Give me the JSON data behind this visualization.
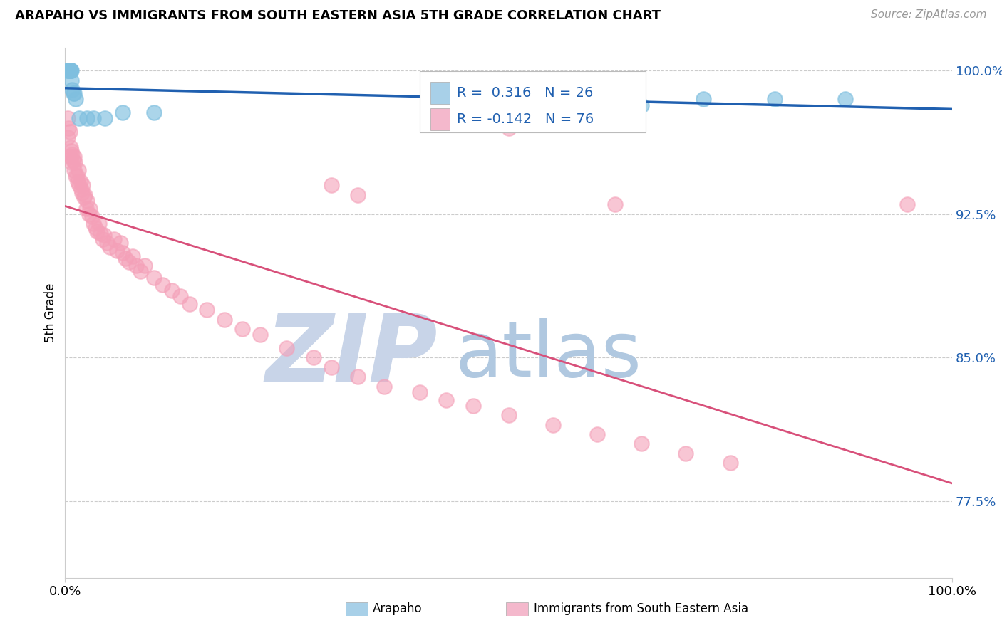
{
  "title": "ARAPAHO VS IMMIGRANTS FROM SOUTH EASTERN ASIA 5TH GRADE CORRELATION CHART",
  "source": "Source: ZipAtlas.com",
  "ylabel": "5th Grade",
  "xmin": 0.0,
  "xmax": 1.0,
  "ymin": 0.735,
  "ymax": 1.012,
  "yticks": [
    0.775,
    0.85,
    0.925,
    1.0
  ],
  "ytick_labels": [
    "77.5%",
    "85.0%",
    "92.5%",
    "100.0%"
  ],
  "arapaho_R": 0.316,
  "arapaho_N": 26,
  "immigrants_R": -0.142,
  "immigrants_N": 76,
  "blue_scatter_color": "#7fbfdf",
  "pink_scatter_color": "#f4a0b8",
  "blue_line_color": "#2060b0",
  "pink_line_color": "#d8507a",
  "legend_blue_fill": "#a8d0e8",
  "legend_pink_fill": "#f4b8cc",
  "watermark_zip_color": "#c8d4e8",
  "watermark_atlas_color": "#b0c8e0",
  "legend_label_blue": "Arapaho",
  "legend_label_pink": "Immigrants from South Eastern Asia",
  "blue_scatter_x": [
    0.003,
    0.004,
    0.004,
    0.005,
    0.005,
    0.006,
    0.006,
    0.006,
    0.006,
    0.007,
    0.007,
    0.008,
    0.009,
    0.01,
    0.012,
    0.016,
    0.025,
    0.032,
    0.045,
    0.065,
    0.1,
    0.52,
    0.65,
    0.72,
    0.8,
    0.88
  ],
  "blue_scatter_y": [
    1.0,
    1.0,
    1.0,
    1.0,
    1.0,
    1.0,
    1.0,
    1.0,
    1.0,
    1.0,
    0.995,
    0.99,
    0.988,
    0.988,
    0.985,
    0.975,
    0.975,
    0.975,
    0.975,
    0.978,
    0.978,
    0.98,
    0.982,
    0.985,
    0.985,
    0.985
  ],
  "pink_scatter_x": [
    0.003,
    0.003,
    0.004,
    0.005,
    0.006,
    0.006,
    0.007,
    0.007,
    0.008,
    0.009,
    0.01,
    0.01,
    0.011,
    0.012,
    0.013,
    0.014,
    0.015,
    0.016,
    0.017,
    0.018,
    0.019,
    0.02,
    0.021,
    0.022,
    0.024,
    0.025,
    0.027,
    0.028,
    0.03,
    0.032,
    0.034,
    0.036,
    0.038,
    0.04,
    0.042,
    0.044,
    0.047,
    0.05,
    0.055,
    0.058,
    0.062,
    0.065,
    0.068,
    0.072,
    0.076,
    0.08,
    0.085,
    0.09,
    0.1,
    0.11,
    0.12,
    0.13,
    0.14,
    0.16,
    0.18,
    0.2,
    0.22,
    0.25,
    0.28,
    0.3,
    0.33,
    0.36,
    0.4,
    0.43,
    0.46,
    0.5,
    0.55,
    0.6,
    0.65,
    0.7,
    0.75,
    0.62,
    0.3,
    0.33,
    0.5,
    0.95
  ],
  "pink_scatter_y": [
    0.975,
    0.965,
    0.97,
    0.968,
    0.96,
    0.955,
    0.958,
    0.952,
    0.956,
    0.953,
    0.955,
    0.948,
    0.952,
    0.945,
    0.945,
    0.942,
    0.948,
    0.94,
    0.942,
    0.938,
    0.936,
    0.94,
    0.934,
    0.935,
    0.928,
    0.932,
    0.925,
    0.928,
    0.924,
    0.92,
    0.918,
    0.916,
    0.92,
    0.915,
    0.912,
    0.914,
    0.91,
    0.908,
    0.912,
    0.906,
    0.91,
    0.905,
    0.902,
    0.9,
    0.903,
    0.898,
    0.895,
    0.898,
    0.892,
    0.888,
    0.885,
    0.882,
    0.878,
    0.875,
    0.87,
    0.865,
    0.862,
    0.855,
    0.85,
    0.845,
    0.84,
    0.835,
    0.832,
    0.828,
    0.825,
    0.82,
    0.815,
    0.81,
    0.805,
    0.8,
    0.795,
    0.93,
    0.94,
    0.935,
    0.97,
    0.93
  ]
}
